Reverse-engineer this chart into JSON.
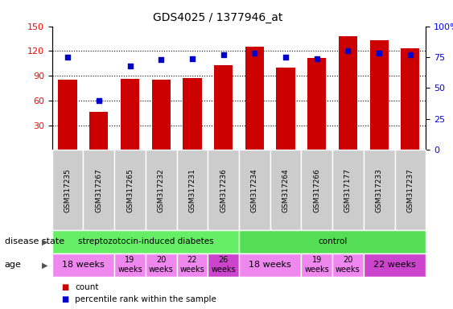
{
  "title": "GDS4025 / 1377946_at",
  "samples": [
    "GSM317235",
    "GSM317267",
    "GSM317265",
    "GSM317232",
    "GSM317231",
    "GSM317236",
    "GSM317234",
    "GSM317264",
    "GSM317266",
    "GSM317177",
    "GSM317233",
    "GSM317237"
  ],
  "counts": [
    85,
    46,
    86,
    85,
    87,
    103,
    125,
    100,
    112,
    138,
    133,
    123
  ],
  "percentiles": [
    75,
    40,
    68,
    73,
    74,
    77,
    78,
    75,
    74,
    80,
    78,
    77
  ],
  "left_ylim": [
    0,
    150
  ],
  "left_yticks": [
    30,
    60,
    90,
    120,
    150
  ],
  "left_yticklabels": [
    "30",
    "60",
    "90",
    "120",
    "150"
  ],
  "right_ylim": [
    0,
    100
  ],
  "right_yticks": [
    0,
    25,
    50,
    75,
    100
  ],
  "right_yticklabels": [
    "0",
    "25",
    "50",
    "75",
    "100%"
  ],
  "bar_color": "#cc0000",
  "dot_color": "#0000cc",
  "disease_state_groups": [
    {
      "label": "streptozotocin-induced diabetes",
      "start": 0,
      "end": 6,
      "color": "#66ee66"
    },
    {
      "label": "control",
      "start": 6,
      "end": 12,
      "color": "#55dd55"
    }
  ],
  "age_groups": [
    {
      "label": "18 weeks",
      "start": 0,
      "end": 2,
      "color": "#ee88ee",
      "fontsize": 8,
      "small": false
    },
    {
      "label": "19\nweeks",
      "start": 2,
      "end": 3,
      "color": "#ee88ee",
      "fontsize": 7,
      "small": true
    },
    {
      "label": "20\nweeks",
      "start": 3,
      "end": 4,
      "color": "#ee88ee",
      "fontsize": 7,
      "small": true
    },
    {
      "label": "22\nweeks",
      "start": 4,
      "end": 5,
      "color": "#ee88ee",
      "fontsize": 7,
      "small": true
    },
    {
      "label": "26\nweeks",
      "start": 5,
      "end": 6,
      "color": "#cc44cc",
      "fontsize": 7,
      "small": true
    },
    {
      "label": "18 weeks",
      "start": 6,
      "end": 8,
      "color": "#ee88ee",
      "fontsize": 8,
      "small": false
    },
    {
      "label": "19\nweeks",
      "start": 8,
      "end": 9,
      "color": "#ee88ee",
      "fontsize": 7,
      "small": true
    },
    {
      "label": "20\nweeks",
      "start": 9,
      "end": 10,
      "color": "#ee88ee",
      "fontsize": 7,
      "small": true
    },
    {
      "label": "22 weeks",
      "start": 10,
      "end": 12,
      "color": "#cc44cc",
      "fontsize": 8,
      "small": false
    }
  ],
  "tick_label_bg": "#cccccc",
  "figsize": [
    5.63,
    3.84
  ],
  "dpi": 100
}
